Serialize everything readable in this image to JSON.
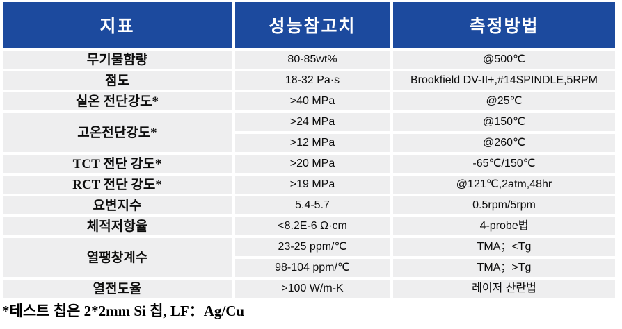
{
  "table": {
    "header": {
      "indicator": "지표",
      "reference": "성능참고치",
      "method": "측정방법"
    },
    "rows": [
      {
        "indicator": "무기물함량",
        "value": "80-85wt%",
        "method": "@500℃"
      },
      {
        "indicator": "점도",
        "value": "18-32 Pa·s",
        "method": "Brookfield DV-II+,#14SPINDLE,5RPM"
      },
      {
        "indicator": "실온 전단강도*",
        "value": ">40 MPa",
        "method": "@25℃"
      },
      {
        "indicator": "고온전단강도*",
        "value": ">24 MPa",
        "method": "@150℃"
      },
      {
        "value": ">12 MPa",
        "method": "@260℃"
      },
      {
        "indicator": "TCT 전단 강도*",
        "value": ">20 MPa",
        "method": "-65℃/150℃"
      },
      {
        "indicator": "RCT 전단 강도*",
        "value": ">19 MPa",
        "method": "@121℃,2atm,48hr"
      },
      {
        "indicator": "요변지수",
        "value": "5.4-5.7",
        "method": "0.5rpm/5rpm"
      },
      {
        "indicator": "체적저항율",
        "value": "<8.2E-6 Ω·cm",
        "method": "4-probe법"
      },
      {
        "indicator": "열팽창계수",
        "value": "23-25 ppm/℃",
        "method": "TMA；<Tg"
      },
      {
        "value": "98-104 ppm/℃",
        "method": "TMA；>Tg"
      },
      {
        "indicator": "열전도율",
        "value": ">100 W/m-K",
        "method": "레이저 산란법"
      }
    ],
    "footnote": "*테스트 칩은 2*2mm Si 칩, LF：Ag/Cu",
    "colors": {
      "header_bg": "#1c4a9e",
      "header_text": "#ffffff",
      "row_bg": "#eeeeef",
      "body_text": "#0d0d0d"
    }
  }
}
